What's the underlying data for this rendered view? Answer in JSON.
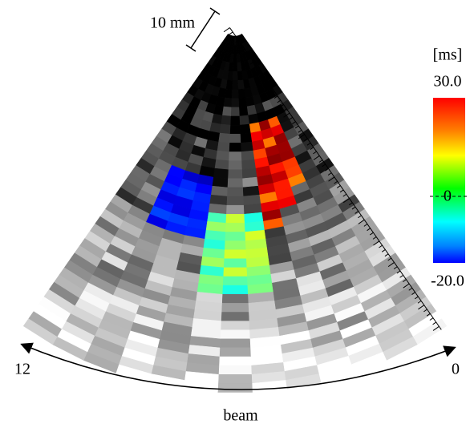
{
  "scale_label": "10 mm",
  "colorbar": {
    "unit": "[ms]",
    "max_label": "30.0",
    "zero_label": "0",
    "min_label": "-20.0"
  },
  "beam_axis": {
    "left_label": "12",
    "right_label": "0",
    "title": "beam"
  }
}
